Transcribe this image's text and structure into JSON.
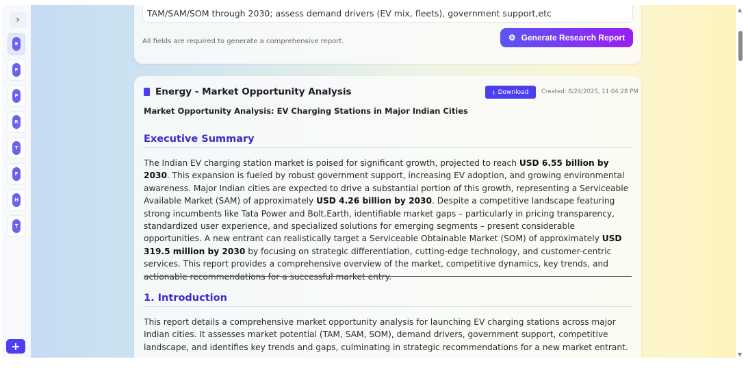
{
  "sidebar": {
    "toggle_icon": "chevron-right",
    "items": [
      {
        "letter": "E",
        "active": true
      },
      {
        "letter": "F"
      },
      {
        "letter": "P"
      },
      {
        "letter": "R"
      },
      {
        "letter": "T"
      },
      {
        "letter": "F"
      },
      {
        "letter": "H"
      },
      {
        "letter": "T"
      }
    ],
    "add_label": "+"
  },
  "form": {
    "textarea_value": "TAM/SAM/SOM through 2030; assess demand drivers (EV mix, fleets), government support,etc",
    "required_note": "All fields are required to generate a comprehensive report.",
    "generate_label": "Generate Research Report"
  },
  "report": {
    "title": "Energy - Market Opportunity Analysis",
    "download_label": "Download",
    "created": "Created: 8/24/2025, 11:04:28 PM",
    "subtitle": "Market Opportunity Analysis: EV Charging Stations in Major Indian Cities",
    "sections": [
      {
        "heading": "Executive Summary",
        "segments": [
          {
            "t": "The Indian EV charging station market is poised for significant growth, projected to reach "
          },
          {
            "t": "USD 6.55 billion by 2030",
            "b": true
          },
          {
            "t": ". This expansion is fueled by robust government support, increasing EV adoption, and growing environmental awareness. Major Indian cities are expected to drive a substantial portion of this growth, representing a Serviceable Available Market (SAM) of approximately "
          },
          {
            "t": "USD 4.26 billion by 2030",
            "b": true
          },
          {
            "t": ". Despite a competitive landscape featuring strong incumbents like Tata Power and Bolt.Earth, identifiable market gaps – particularly in pricing transparency, standardized user experience, and specialized solutions for emerging segments – present considerable opportunities. A new entrant can realistically target a Serviceable Obtainable Market (SOM) of approximately "
          },
          {
            "t": "USD 319.5 million by 2030",
            "b": true
          },
          {
            "t": " by focusing on strategic differentiation, cutting-edge technology, and customer-centric services. This report provides a comprehensive overview of the market, competitive dynamics, key trends, and actionable recommendations for a successful market entry."
          }
        ]
      },
      {
        "heading": "1. Introduction",
        "segments": [
          {
            "t": "This report details a comprehensive market opportunity analysis for launching EV charging stations across major Indian cities. It assesses market potential (TAM, SAM, SOM), demand drivers, government support, competitive landscape, and identifies key trends and gaps, culminating in strategic recommendations for a new market entrant."
          }
        ]
      }
    ]
  },
  "colors": {
    "accent": "#4b3ff0",
    "heading": "#3a2bc8",
    "gradient_end": "#9a1ef0"
  }
}
